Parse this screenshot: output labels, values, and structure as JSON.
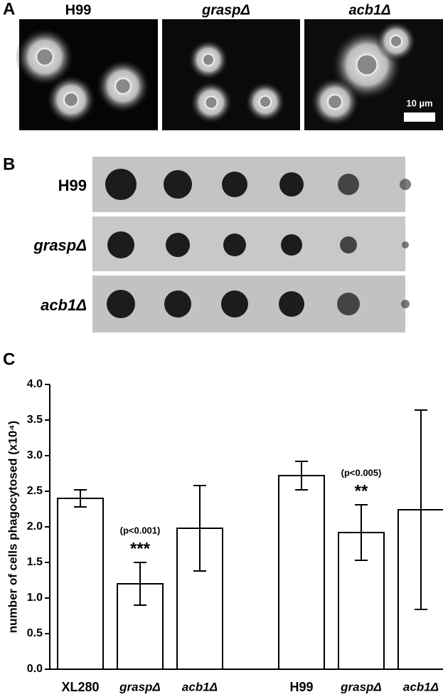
{
  "panels": {
    "a": {
      "letter": "A",
      "labels": [
        "H99",
        "graspΔ",
        "acb1Δ"
      ],
      "scale_label": "10 µm"
    },
    "b": {
      "letter": "B",
      "labels": [
        "H99",
        "graspΔ",
        "acb1Δ"
      ]
    }
  },
  "chart_data": {
    "type": "bar",
    "panel_label": "C",
    "y_label": "number of cells phagocytosed (x10⁴)",
    "categories": [
      "XL280",
      "graspΔ",
      "acb1Δ",
      "H99",
      "graspΔ",
      "acb1Δ"
    ],
    "values": [
      2.4,
      1.2,
      1.98,
      2.72,
      1.92,
      2.24
    ],
    "errors": [
      0.12,
      0.3,
      0.6,
      0.2,
      0.39,
      1.4
    ],
    "annotations": [
      "(p<0.001)",
      "***",
      "(p<0.005)",
      "**"
    ],
    "color": "#ffffff",
    "ylim": [
      0,
      4
    ],
    "yticks": [
      {
        "value": 0,
        "label": "0.0"
      },
      0.5,
      {
        "value": 1,
        "label": "1.0"
      },
      1.5,
      {
        "value": 2,
        "label": "2.0"
      },
      2.5,
      {
        "value": 3,
        "label": "3.0"
      },
      3.5,
      {
        "value": 4,
        "label": "4.0"
      }
    ]
  }
}
